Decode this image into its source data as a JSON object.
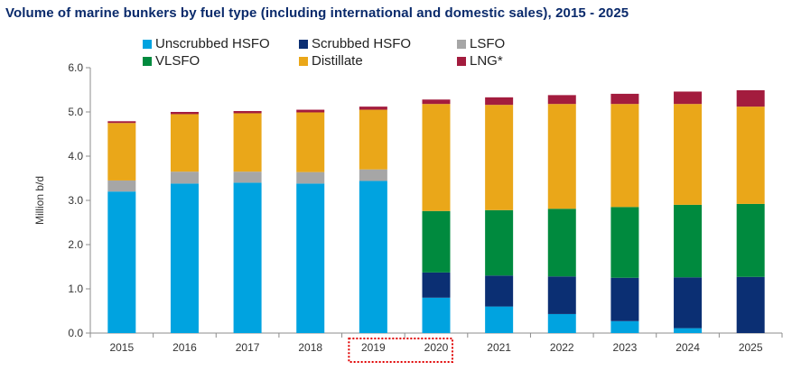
{
  "chart_data": {
    "type": "bar",
    "stacked": true,
    "title": "Volume of marine bunkers by fuel type (including international and domestic sales), 2015 - 2025",
    "ylabel": "Million b/d",
    "xlabel": "",
    "ylim": [
      0,
      6
    ],
    "yticks": [
      "0.0",
      "1.0",
      "2.0",
      "3.0",
      "4.0",
      "5.0",
      "6.0"
    ],
    "categories": [
      "2015",
      "2016",
      "2017",
      "2018",
      "2019",
      "2020",
      "2021",
      "2022",
      "2023",
      "2024",
      "2025"
    ],
    "highlighted_categories": [
      "2019",
      "2020"
    ],
    "legend_placement": "top",
    "grid": false,
    "series": [
      {
        "name": "Unscrubbed HSFO",
        "color": "#00a3e0",
        "values": [
          3.2,
          3.38,
          3.4,
          3.38,
          3.44,
          0.8,
          0.6,
          0.43,
          0.27,
          0.11,
          0.0
        ]
      },
      {
        "name": "Scrubbed HSFO",
        "color": "#0b2f73",
        "values": [
          0,
          0,
          0,
          0,
          0,
          0.57,
          0.7,
          0.85,
          0.98,
          1.15,
          1.27
        ]
      },
      {
        "name": "LSFO",
        "color": "#a6a6a6",
        "values": [
          0.25,
          0.27,
          0.25,
          0.26,
          0.26,
          0,
          0,
          0,
          0,
          0,
          0
        ]
      },
      {
        "name": "VLSFO",
        "color": "#008a3e",
        "values": [
          0,
          0,
          0,
          0,
          0,
          1.39,
          1.48,
          1.53,
          1.6,
          1.64,
          1.65
        ]
      },
      {
        "name": "Distillate",
        "color": "#eaa719",
        "values": [
          1.3,
          1.3,
          1.32,
          1.35,
          1.35,
          2.42,
          2.38,
          2.37,
          2.33,
          2.28,
          2.2
        ]
      },
      {
        "name": "LNG*",
        "color": "#a31c3e",
        "values": [
          0.04,
          0.05,
          0.05,
          0.06,
          0.07,
          0.1,
          0.17,
          0.2,
          0.23,
          0.28,
          0.37
        ]
      }
    ]
  }
}
